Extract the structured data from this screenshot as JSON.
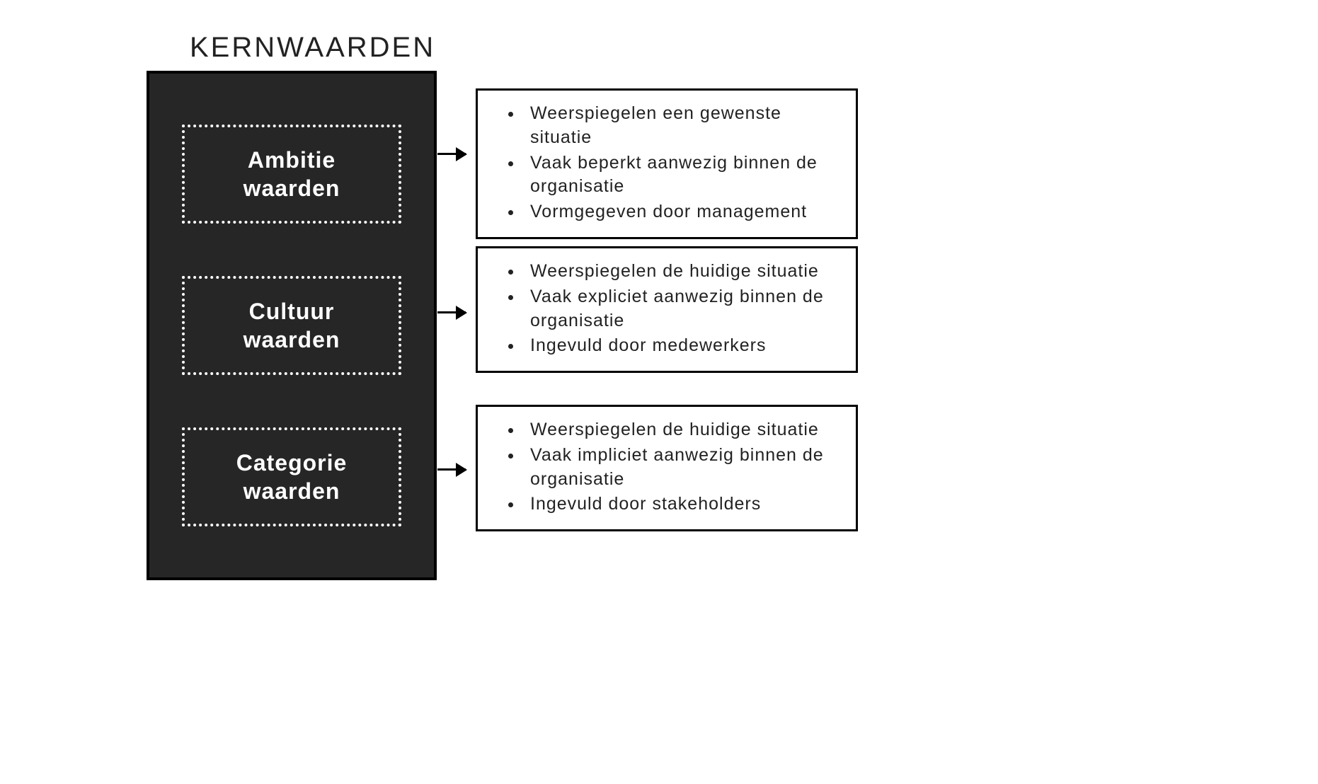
{
  "diagram": {
    "type": "infographic",
    "heading": "KERNWAARDEN",
    "colors": {
      "background": "#ffffff",
      "panel_bg": "#262626",
      "panel_border": "#000000",
      "dotted_border": "#ffffff",
      "text_dark": "#222222",
      "text_light": "#ffffff",
      "box_border": "#000000",
      "arrow": "#000000"
    },
    "typography": {
      "heading_fontsize": 40,
      "value_fontsize": 32,
      "desc_fontsize": 25
    },
    "values": [
      {
        "line1": "Ambitie",
        "line2": "waarden"
      },
      {
        "line1": "Cultuur",
        "line2": "waarden"
      },
      {
        "line1": "Categorie",
        "line2": "waarden"
      }
    ],
    "descriptions": [
      {
        "bullets": [
          "Weerspiegelen een gewenste situatie",
          "Vaak beperkt aanwezig binnen de organisatie",
          "Vormgegeven door management"
        ]
      },
      {
        "bullets": [
          "Weerspiegelen de huidige situatie",
          "Vaak expliciet aanwezig binnen de organisatie",
          "Ingevuld door medewerkers"
        ]
      },
      {
        "bullets": [
          "Weerspiegelen de huidige situatie",
          "Vaak impliciet aanwezig binnen de organisatie",
          "Ingevuld door stakeholders"
        ]
      }
    ]
  }
}
